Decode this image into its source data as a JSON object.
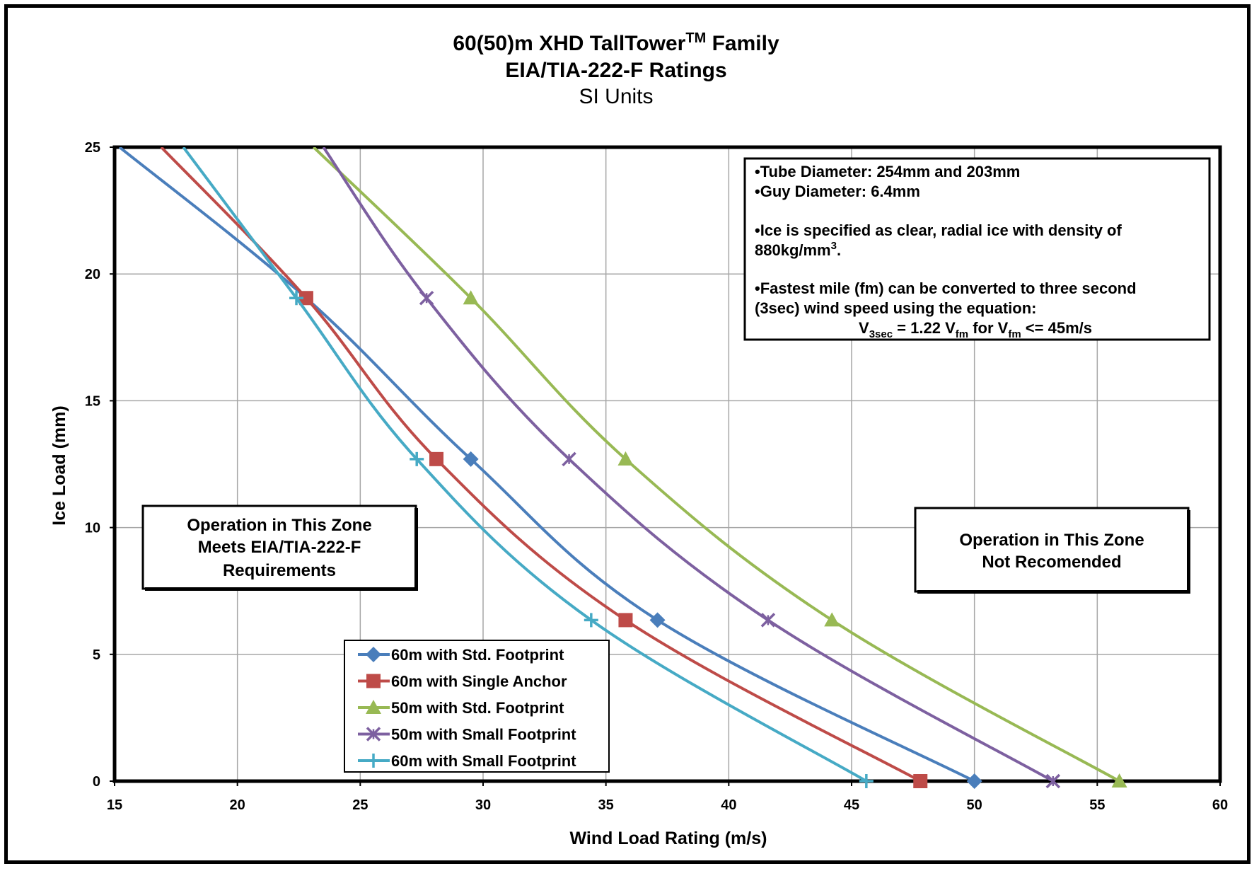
{
  "chart_data": {
    "type": "line",
    "title_main": "60(50)m XHD TallTower",
    "title_tm": "TM",
    "title_suffix": " Family",
    "title_line2": "EIA/TIA-222-F Ratings",
    "subtitle": "SI Units",
    "xlabel": "Wind Load Rating (m/s)",
    "ylabel": "Ice Load (mm)",
    "xlim": [
      15,
      60
    ],
    "ylim": [
      0,
      25
    ],
    "xticks": [
      15,
      20,
      25,
      30,
      35,
      40,
      45,
      50,
      55,
      60
    ],
    "yticks": [
      0,
      5,
      10,
      15,
      20,
      25
    ],
    "grid": true,
    "legend_position": "bottom-left",
    "series": [
      {
        "name": "60m with Std. Footprint",
        "color": "#4a7ebb",
        "marker": "diamond",
        "x": [
          15.2,
          22.8,
          29.5,
          37.1,
          50.0
        ],
        "y": [
          25,
          19.05,
          12.7,
          6.35,
          0
        ],
        "marked": [
          false,
          false,
          true,
          true,
          true
        ]
      },
      {
        "name": "60m with Single Anchor",
        "color": "#be4b48",
        "marker": "square",
        "x": [
          16.9,
          22.8,
          28.1,
          35.8,
          47.8
        ],
        "y": [
          25,
          19.05,
          12.7,
          6.35,
          0
        ],
        "marked": [
          false,
          true,
          true,
          true,
          true
        ]
      },
      {
        "name": "50m with Std. Footprint",
        "color": "#98b954",
        "marker": "triangle",
        "x": [
          23.1,
          29.5,
          35.8,
          44.2,
          55.9
        ],
        "y": [
          25,
          19.05,
          12.7,
          6.35,
          0
        ],
        "marked": [
          false,
          true,
          true,
          true,
          true
        ]
      },
      {
        "name": "50m with Small Footprint",
        "color": "#7d60a0",
        "marker": "x",
        "x": [
          23.5,
          27.7,
          33.5,
          41.6,
          53.2
        ],
        "y": [
          25,
          19.05,
          12.7,
          6.35,
          0
        ],
        "marked": [
          false,
          true,
          true,
          true,
          true
        ]
      },
      {
        "name": "60m with Small Footprint",
        "color": "#46aac5",
        "marker": "plus",
        "x": [
          17.8,
          22.4,
          27.3,
          34.4,
          45.6
        ],
        "y": [
          25,
          19.05,
          12.7,
          6.35,
          0
        ],
        "marked": [
          false,
          true,
          true,
          true,
          true
        ]
      }
    ],
    "annotations": {
      "left_zone": [
        "Operation in This Zone",
        "Meets EIA/TIA-222-F",
        "Requirements"
      ],
      "right_zone": [
        "Operation in This Zone",
        "Not Recomended"
      ]
    },
    "notes": {
      "line1": "•Tube Diameter: 254mm and 203mm",
      "line2": "•Guy Diameter:  6.4mm",
      "line3": "•Ice is specified as clear, radial ice with density of",
      "line4_main": "880kg/mm",
      "line4_sup": "3",
      "line4_end": ".",
      "line5": "•Fastest mile (fm) can be converted to three second",
      "line6": "(3sec) wind speed using the equation:",
      "eq_v": "V",
      "eq_sub1": "3sec",
      "eq_mid": " = 1.22 V",
      "eq_sub2": "fm",
      "eq_for": " for V",
      "eq_sub3": "fm",
      "eq_end": " <= 45m/s"
    }
  }
}
